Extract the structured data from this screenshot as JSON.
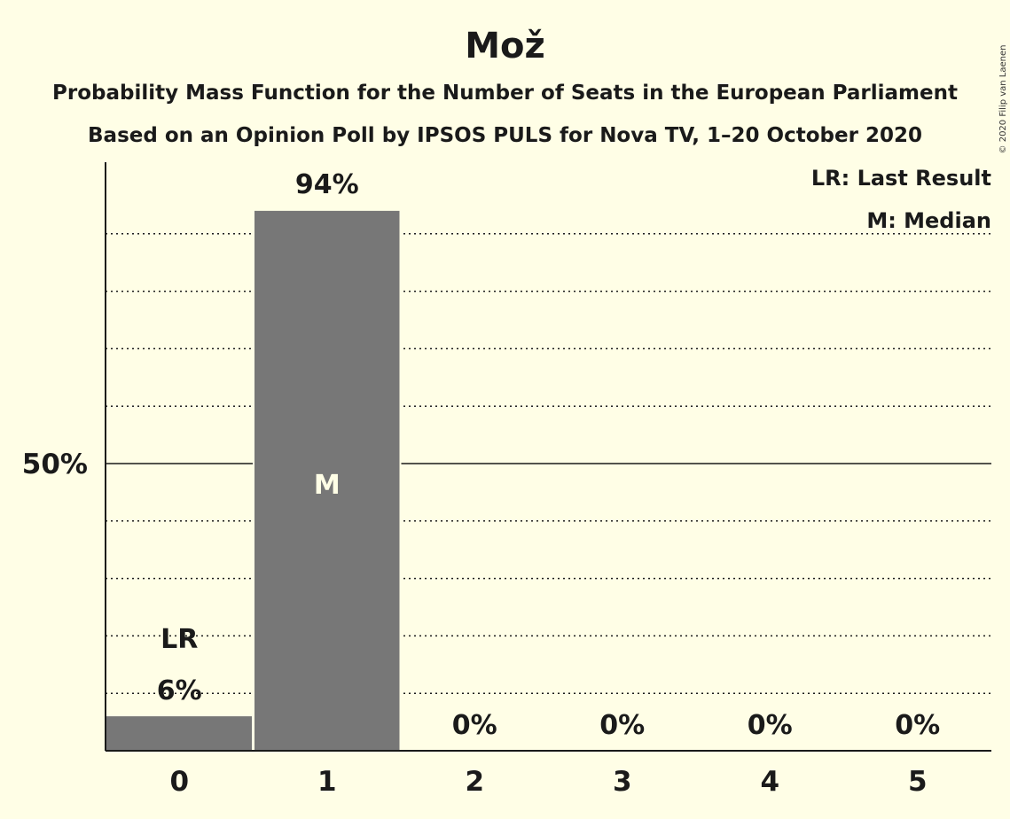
{
  "colors": {
    "background": "#FFFEE6",
    "bar": "#777777",
    "text": "#1a1a1a"
  },
  "copyright": "© 2020 Filip van Laenen",
  "legend": {
    "last_result": "LR: Last Result",
    "median": "M: Median"
  },
  "chart_data": {
    "type": "bar",
    "title": "Mož",
    "subtitle_lines": [
      "Probability Mass Function for the Number of Seats in the European Parliament",
      "Based on an Opinion Poll by IPSOS PULS for Nova TV, 1–20 October 2020"
    ],
    "categories": [
      "0",
      "1",
      "2",
      "3",
      "4",
      "5"
    ],
    "values": [
      6,
      94,
      0,
      0,
      0,
      0
    ],
    "value_labels": [
      "6%",
      "94%",
      "0%",
      "0%",
      "0%",
      "0%"
    ],
    "ylabel": "",
    "xlabel": "",
    "ylim": [
      0,
      100
    ],
    "y_tick_labels": [
      {
        "value": 50,
        "label": "50%"
      }
    ],
    "gridlines_dotted": [
      10,
      20,
      30,
      40,
      60,
      70,
      80,
      90
    ],
    "gridline_solid": 50,
    "last_result_category": "0",
    "last_result_label": "LR",
    "median_category": "1",
    "median_label": "M"
  }
}
